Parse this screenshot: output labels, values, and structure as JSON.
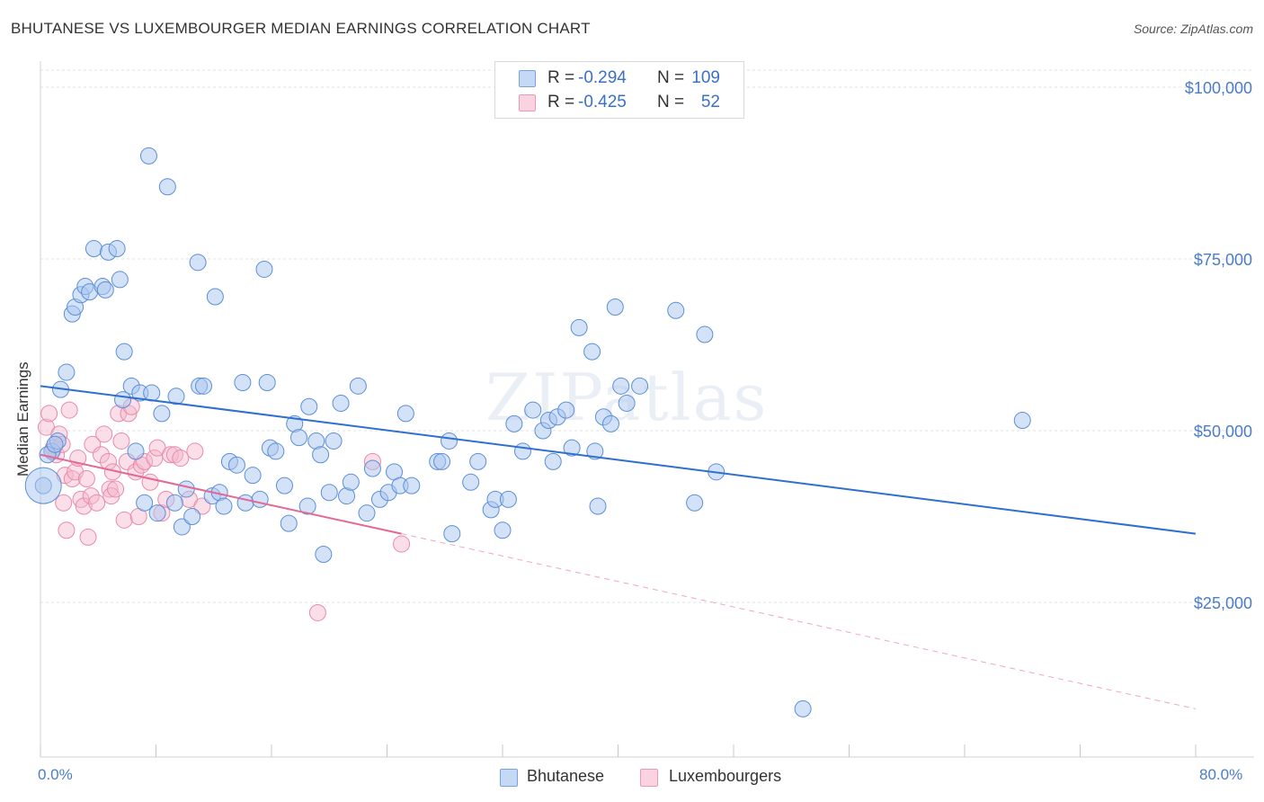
{
  "title": "BHUTANESE VS LUXEMBOURGER MEDIAN EARNINGS CORRELATION CHART",
  "source": "Source: ZipAtlas.com",
  "watermark": "ZIPatlas",
  "legend": {
    "rows": [
      {
        "r_label": "R =",
        "r_value": "-0.294",
        "n_label": "N =",
        "n_value": "109",
        "color": "#a9c6ef"
      },
      {
        "r_label": "R =",
        "r_value": "-0.425",
        "n_label": "N =",
        "n_value": "52",
        "color": "#f5b8cb"
      }
    ]
  },
  "bottom_legend": {
    "series1": "Bhutanese",
    "series2": "Luxembourgers"
  },
  "x_min_label": "0.0%",
  "x_max_label": "80.0%",
  "chart_data": {
    "type": "scatter",
    "xlabel": "",
    "ylabel": "Median Earnings",
    "xlim": [
      0,
      80
    ],
    "ylim": [
      0,
      105000
    ],
    "yticks": [
      {
        "value": 25000,
        "label": "$25,000"
      },
      {
        "value": 50000,
        "label": "$50,000"
      },
      {
        "value": 75000,
        "label": "$75,000"
      },
      {
        "value": 100000,
        "label": "$100,000"
      }
    ],
    "grid": true,
    "legend_position": "top-center",
    "series": [
      {
        "name": "Bhutanese",
        "color": "#a9c6ef",
        "stroke": "#5b8fd6",
        "trend": {
          "x": [
            0,
            80
          ],
          "y": [
            56500,
            35000
          ],
          "color": "#2f6fd0"
        },
        "points": [
          [
            0.2,
            42000
          ],
          [
            0.8,
            47000
          ],
          [
            1.2,
            48500
          ],
          [
            1.4,
            56000
          ],
          [
            1.8,
            58500
          ],
          [
            2.2,
            67000
          ],
          [
            2.4,
            68000
          ],
          [
            2.8,
            69800
          ],
          [
            3.1,
            71000
          ],
          [
            3.4,
            70200
          ],
          [
            3.7,
            76500
          ],
          [
            4.3,
            71000
          ],
          [
            4.5,
            70500
          ],
          [
            4.7,
            76000
          ],
          [
            5.3,
            76500
          ],
          [
            5.5,
            72000
          ],
          [
            5.8,
            61500
          ],
          [
            5.7,
            54500
          ],
          [
            6.3,
            56500
          ],
          [
            6.6,
            47000
          ],
          [
            6.9,
            55500
          ],
          [
            7.2,
            39500
          ],
          [
            7.7,
            55500
          ],
          [
            8.1,
            38000
          ],
          [
            8.4,
            52500
          ],
          [
            7.5,
            90000
          ],
          [
            8.8,
            85500
          ],
          [
            9.4,
            55000
          ],
          [
            9.3,
            39500
          ],
          [
            9.8,
            36000
          ],
          [
            10.1,
            41500
          ],
          [
            10.5,
            37500
          ],
          [
            10.9,
            74500
          ],
          [
            11.0,
            56500
          ],
          [
            11.3,
            56500
          ],
          [
            11.9,
            40500
          ],
          [
            12.1,
            69500
          ],
          [
            12.4,
            41000
          ],
          [
            12.7,
            39000
          ],
          [
            13.1,
            45500
          ],
          [
            13.6,
            45000
          ],
          [
            14.0,
            57000
          ],
          [
            14.2,
            39500
          ],
          [
            14.7,
            43500
          ],
          [
            15.2,
            40000
          ],
          [
            15.5,
            73500
          ],
          [
            15.7,
            57000
          ],
          [
            15.9,
            47500
          ],
          [
            16.3,
            47000
          ],
          [
            16.9,
            42000
          ],
          [
            17.2,
            36500
          ],
          [
            17.6,
            51000
          ],
          [
            17.9,
            49000
          ],
          [
            18.6,
            53500
          ],
          [
            18.5,
            39000
          ],
          [
            19.1,
            48500
          ],
          [
            19.4,
            46500
          ],
          [
            19.6,
            32000
          ],
          [
            20.0,
            41000
          ],
          [
            20.3,
            48500
          ],
          [
            20.8,
            54000
          ],
          [
            21.2,
            40500
          ],
          [
            21.5,
            42500
          ],
          [
            22.0,
            56500
          ],
          [
            22.6,
            38000
          ],
          [
            23.0,
            44500
          ],
          [
            23.5,
            40000
          ],
          [
            24.1,
            41000
          ],
          [
            24.5,
            44000
          ],
          [
            24.9,
            42000
          ],
          [
            25.3,
            52500
          ],
          [
            25.7,
            42000
          ],
          [
            27.5,
            45500
          ],
          [
            27.8,
            45500
          ],
          [
            28.3,
            48500
          ],
          [
            28.5,
            35000
          ],
          [
            29.8,
            42500
          ],
          [
            30.3,
            45500
          ],
          [
            31.2,
            38500
          ],
          [
            31.5,
            40000
          ],
          [
            32.0,
            35500
          ],
          [
            32.4,
            40000
          ],
          [
            32.8,
            51000
          ],
          [
            33.4,
            47000
          ],
          [
            34.1,
            53000
          ],
          [
            34.8,
            50000
          ],
          [
            35.2,
            51500
          ],
          [
            35.5,
            45500
          ],
          [
            35.8,
            52000
          ],
          [
            36.4,
            53000
          ],
          [
            36.8,
            47500
          ],
          [
            37.3,
            65000
          ],
          [
            38.2,
            61500
          ],
          [
            38.4,
            47000
          ],
          [
            38.6,
            39000
          ],
          [
            39.0,
            52000
          ],
          [
            39.5,
            51000
          ],
          [
            40.2,
            56500
          ],
          [
            39.8,
            68000
          ],
          [
            40.6,
            54000
          ],
          [
            41.5,
            56500
          ],
          [
            44.0,
            67500
          ],
          [
            45.3,
            39500
          ],
          [
            46.0,
            64000
          ],
          [
            46.8,
            44000
          ],
          [
            52.8,
            9500
          ],
          [
            68.0,
            51500
          ],
          [
            0.5,
            46500
          ],
          [
            1.0,
            48000
          ]
        ]
      },
      {
        "name": "Luxembourgers",
        "color": "#f5b8cb",
        "stroke": "#e98aa9",
        "trend": {
          "x": [
            0,
            25
          ],
          "y": [
            46500,
            35000
          ],
          "color": "#e56795"
        },
        "trend_dash": {
          "x": [
            25,
            80
          ],
          "y": [
            35000,
            9500
          ]
        },
        "points": [
          [
            0.4,
            50500
          ],
          [
            0.6,
            52500
          ],
          [
            0.9,
            47500
          ],
          [
            1.1,
            46500
          ],
          [
            1.3,
            49500
          ],
          [
            1.5,
            48000
          ],
          [
            1.7,
            43500
          ],
          [
            1.6,
            39500
          ],
          [
            1.8,
            35500
          ],
          [
            2.0,
            53000
          ],
          [
            2.2,
            43000
          ],
          [
            2.4,
            44000
          ],
          [
            2.6,
            46000
          ],
          [
            2.8,
            40000
          ],
          [
            3.0,
            39000
          ],
          [
            3.2,
            43000
          ],
          [
            3.3,
            34500
          ],
          [
            3.5,
            40500
          ],
          [
            3.6,
            48000
          ],
          [
            3.9,
            39500
          ],
          [
            4.2,
            46500
          ],
          [
            4.4,
            49500
          ],
          [
            4.7,
            45500
          ],
          [
            4.8,
            41500
          ],
          [
            4.9,
            40500
          ],
          [
            5.0,
            44000
          ],
          [
            5.2,
            41500
          ],
          [
            5.4,
            52500
          ],
          [
            5.6,
            48500
          ],
          [
            5.8,
            37000
          ],
          [
            6.0,
            45500
          ],
          [
            6.1,
            52500
          ],
          [
            6.3,
            53500
          ],
          [
            6.6,
            44000
          ],
          [
            6.8,
            37500
          ],
          [
            7.0,
            45000
          ],
          [
            7.2,
            45500
          ],
          [
            7.6,
            42500
          ],
          [
            7.9,
            46000
          ],
          [
            8.1,
            47500
          ],
          [
            8.4,
            38000
          ],
          [
            8.7,
            40000
          ],
          [
            9.0,
            46500
          ],
          [
            9.3,
            46500
          ],
          [
            9.7,
            46000
          ],
          [
            10.3,
            40000
          ],
          [
            10.7,
            47000
          ],
          [
            11.2,
            39000
          ],
          [
            19.2,
            23500
          ],
          [
            23.0,
            45500
          ],
          [
            25.0,
            33500
          ],
          [
            0.8,
            47000
          ]
        ]
      }
    ]
  }
}
